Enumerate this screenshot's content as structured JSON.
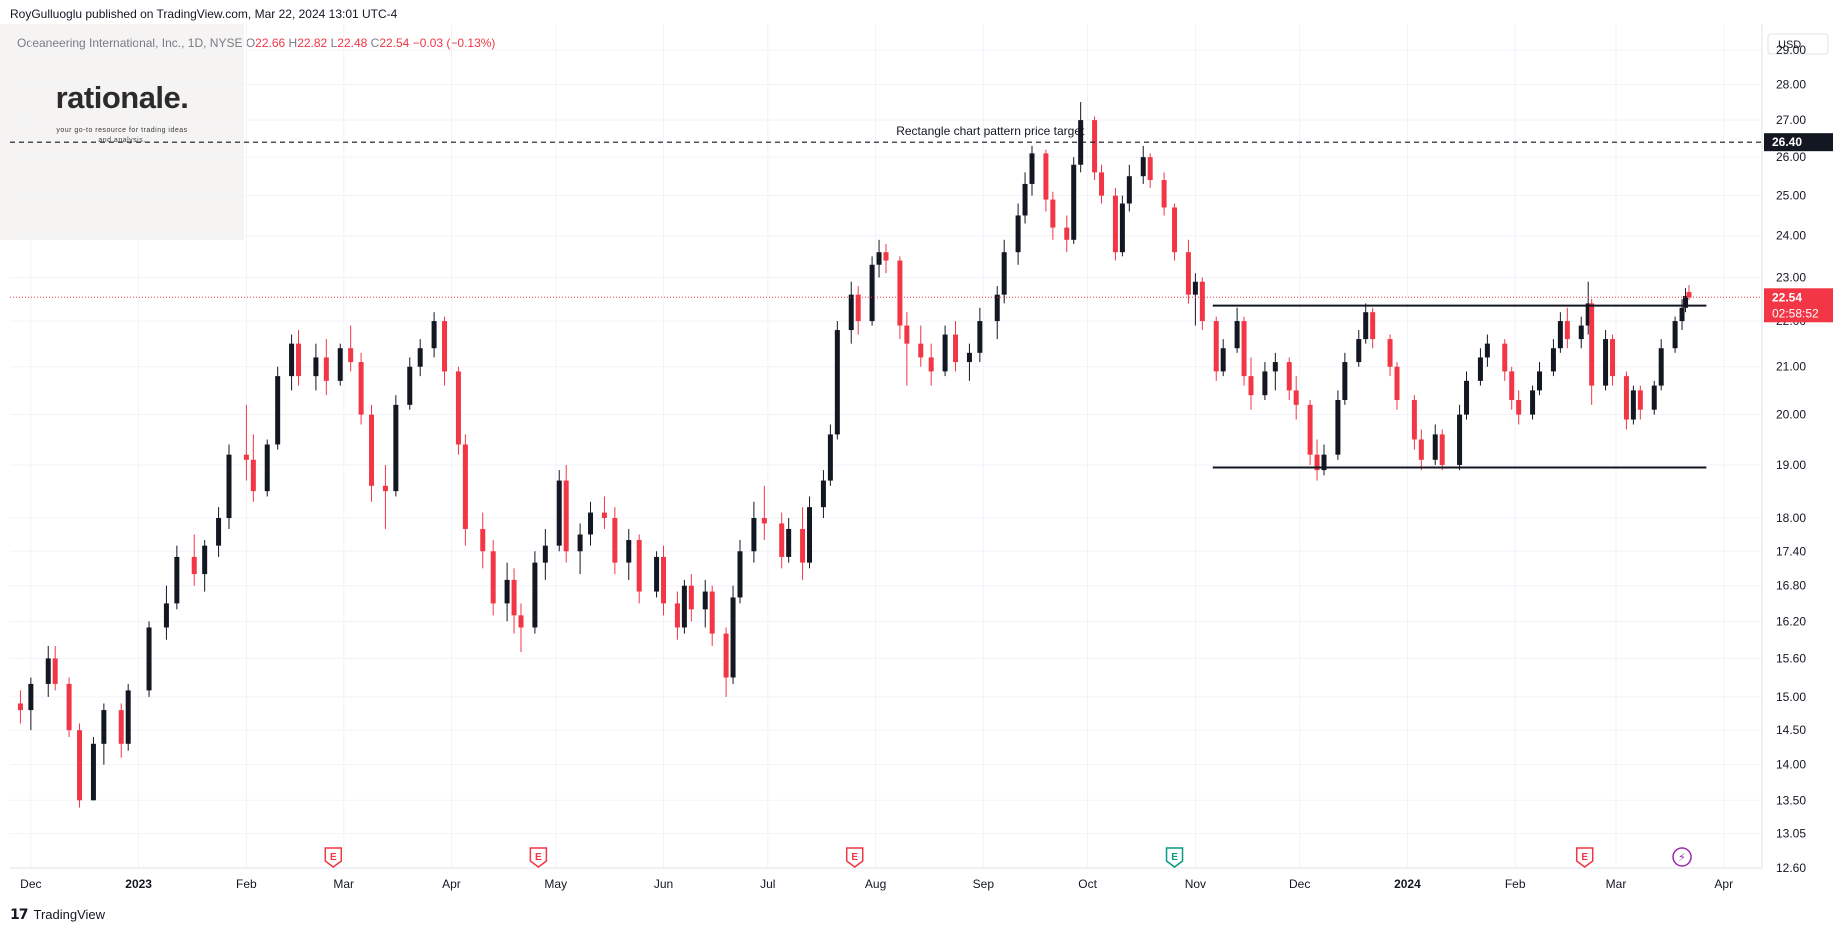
{
  "header": {
    "published": "RoyGulluoglu published on TradingView.com, Mar 22, 2024 13:01 UTC-4"
  },
  "legend": {
    "symbol": "Oceaneering International, Inc., 1D, NYSE",
    "open_label": "O",
    "open": "22.66",
    "high_label": "H",
    "high": "22.82",
    "low_label": "L",
    "low": "22.48",
    "close_label": "C",
    "close": "22.54",
    "change": "−0.03 (−0.13%)"
  },
  "watermark": {
    "brand": "rationale.",
    "tagline": "your go-to resource for trading ideas and analysis."
  },
  "axis": {
    "currency": "USD",
    "price_ticks": [
      "29.00",
      "28.00",
      "27.00",
      "26.00",
      "25.00",
      "24.00",
      "23.00",
      "22.00",
      "21.00",
      "20.00",
      "19.00",
      "18.00",
      "17.40",
      "16.80",
      "16.20",
      "15.60",
      "15.00",
      "14.50",
      "14.00",
      "13.50",
      "13.05",
      "12.60"
    ],
    "time_ticks": [
      "Dec",
      "2023",
      "Feb",
      "Mar",
      "Apr",
      "May",
      "Jun",
      "Jul",
      "Aug",
      "Sep",
      "Oct",
      "Nov",
      "Dec",
      "2024",
      "Feb",
      "Mar",
      "Apr"
    ]
  },
  "price_badge": {
    "price": "22.54",
    "countdown": "02:58:52"
  },
  "target_badge": "26.40",
  "annotation": "Rectangle chart pattern price target",
  "events": {
    "earnings_label": "E",
    "dividend_label": "⚡"
  },
  "footer": {
    "brand": "TradingView"
  },
  "colors": {
    "up": "#131722",
    "down": "#f23645",
    "grid": "#f0f3fa",
    "axis_text": "#131722",
    "last_price_line": "#f23645",
    "dividend": "#9c27b0",
    "earnings_up": "#089981"
  },
  "chart_data": {
    "type": "candlestick",
    "scale": "log",
    "ylim": [
      12.6,
      29.0
    ],
    "xlim": [
      "2022-11-25",
      "2024-04-12"
    ],
    "target_line": 26.4,
    "last_price": 22.54,
    "rectangle_top": 22.35,
    "rectangle_bottom": 18.95,
    "rectangle_range": [
      "2023-11-06",
      "2024-03-22"
    ],
    "candles": [
      [
        "2022-11-28",
        14.9,
        15.1,
        14.6,
        14.8
      ],
      [
        "2022-12-01",
        14.8,
        15.3,
        14.5,
        15.2
      ],
      [
        "2022-12-06",
        15.2,
        15.8,
        15.0,
        15.6
      ],
      [
        "2022-12-08",
        15.6,
        15.8,
        15.1,
        15.2
      ],
      [
        "2022-12-12",
        15.2,
        15.3,
        14.4,
        14.5
      ],
      [
        "2022-12-15",
        14.5,
        14.6,
        13.4,
        13.5
      ],
      [
        "2022-12-19",
        13.5,
        14.4,
        13.5,
        14.3
      ],
      [
        "2022-12-22",
        14.3,
        14.9,
        14.0,
        14.8
      ],
      [
        "2022-12-27",
        14.8,
        14.9,
        14.1,
        14.3
      ],
      [
        "2022-12-29",
        14.3,
        15.2,
        14.2,
        15.1
      ],
      [
        "2023-01-04",
        15.1,
        16.2,
        15.0,
        16.1
      ],
      [
        "2023-01-09",
        16.1,
        16.8,
        15.9,
        16.5
      ],
      [
        "2023-01-12",
        16.5,
        17.5,
        16.4,
        17.3
      ],
      [
        "2023-01-17",
        17.3,
        17.7,
        16.8,
        17.0
      ],
      [
        "2023-01-20",
        17.0,
        17.6,
        16.7,
        17.5
      ],
      [
        "2023-01-24",
        17.5,
        18.2,
        17.3,
        18.0
      ],
      [
        "2023-01-27",
        18.0,
        19.4,
        17.8,
        19.2
      ],
      [
        "2023-02-01",
        19.2,
        20.2,
        18.7,
        19.1
      ],
      [
        "2023-02-03",
        19.1,
        19.6,
        18.3,
        18.5
      ],
      [
        "2023-02-07",
        18.5,
        19.5,
        18.4,
        19.4
      ],
      [
        "2023-02-10",
        19.4,
        21.0,
        19.3,
        20.8
      ],
      [
        "2023-02-14",
        20.8,
        21.7,
        20.5,
        21.5
      ],
      [
        "2023-02-16",
        21.5,
        21.8,
        20.6,
        20.8
      ],
      [
        "2023-02-21",
        20.8,
        21.5,
        20.5,
        21.2
      ],
      [
        "2023-02-24",
        21.2,
        21.6,
        20.4,
        20.7
      ],
      [
        "2023-02-28",
        20.7,
        21.5,
        20.6,
        21.4
      ],
      [
        "2023-03-03",
        21.4,
        21.9,
        20.9,
        21.1
      ],
      [
        "2023-03-06",
        21.1,
        21.3,
        19.8,
        20.0
      ],
      [
        "2023-03-09",
        20.0,
        20.2,
        18.3,
        18.6
      ],
      [
        "2023-03-13",
        18.6,
        19.0,
        17.8,
        18.5
      ],
      [
        "2023-03-16",
        18.5,
        20.4,
        18.4,
        20.2
      ],
      [
        "2023-03-20",
        20.2,
        21.2,
        20.1,
        21.0
      ],
      [
        "2023-03-23",
        21.0,
        21.6,
        20.8,
        21.4
      ],
      [
        "2023-03-27",
        21.4,
        22.2,
        21.2,
        22.0
      ],
      [
        "2023-03-30",
        22.0,
        22.1,
        20.6,
        20.9
      ],
      [
        "2023-04-03",
        20.9,
        21.0,
        19.2,
        19.4
      ],
      [
        "2023-04-05",
        19.4,
        19.6,
        17.5,
        17.8
      ],
      [
        "2023-04-10",
        17.8,
        18.1,
        17.1,
        17.4
      ],
      [
        "2023-04-13",
        17.4,
        17.6,
        16.3,
        16.5
      ],
      [
        "2023-04-17",
        16.5,
        17.2,
        16.2,
        16.9
      ],
      [
        "2023-04-19",
        16.9,
        17.1,
        16.0,
        16.3
      ],
      [
        "2023-04-21",
        16.3,
        16.5,
        15.7,
        16.1
      ],
      [
        "2023-04-25",
        16.1,
        17.4,
        16.0,
        17.2
      ],
      [
        "2023-04-28",
        17.2,
        17.8,
        16.9,
        17.5
      ],
      [
        "2023-05-02",
        17.5,
        18.9,
        17.4,
        18.7
      ],
      [
        "2023-05-04",
        18.7,
        19.0,
        17.2,
        17.4
      ],
      [
        "2023-05-08",
        17.4,
        17.9,
        17.0,
        17.7
      ],
      [
        "2023-05-11",
        17.7,
        18.3,
        17.5,
        18.1
      ],
      [
        "2023-05-15",
        18.1,
        18.4,
        17.8,
        18.0
      ],
      [
        "2023-05-18",
        18.0,
        18.2,
        17.0,
        17.2
      ],
      [
        "2023-05-22",
        17.2,
        17.8,
        16.9,
        17.6
      ],
      [
        "2023-05-25",
        17.6,
        17.7,
        16.5,
        16.7
      ],
      [
        "2023-05-30",
        16.7,
        17.4,
        16.6,
        17.3
      ],
      [
        "2023-06-01",
        17.3,
        17.5,
        16.3,
        16.5
      ],
      [
        "2023-06-05",
        16.5,
        16.7,
        15.9,
        16.1
      ],
      [
        "2023-06-07",
        16.1,
        16.9,
        16.0,
        16.8
      ],
      [
        "2023-06-09",
        16.8,
        17.0,
        16.2,
        16.4
      ],
      [
        "2023-06-13",
        16.4,
        16.9,
        16.1,
        16.7
      ],
      [
        "2023-06-15",
        16.7,
        16.8,
        15.8,
        16.0
      ],
      [
        "2023-06-19",
        16.0,
        16.1,
        15.0,
        15.3
      ],
      [
        "2023-06-21",
        15.3,
        16.8,
        15.2,
        16.6
      ],
      [
        "2023-06-23",
        16.6,
        17.6,
        16.5,
        17.4
      ],
      [
        "2023-06-27",
        17.4,
        18.3,
        17.2,
        18.0
      ],
      [
        "2023-06-30",
        18.0,
        18.6,
        17.6,
        17.9
      ],
      [
        "2023-07-05",
        17.9,
        18.1,
        17.1,
        17.3
      ],
      [
        "2023-07-07",
        17.3,
        18.0,
        17.2,
        17.8
      ],
      [
        "2023-07-11",
        17.8,
        18.2,
        16.9,
        17.2
      ],
      [
        "2023-07-13",
        17.2,
        18.4,
        17.1,
        18.2
      ],
      [
        "2023-07-17",
        18.2,
        18.9,
        18.0,
        18.7
      ],
      [
        "2023-07-19",
        18.7,
        19.8,
        18.6,
        19.6
      ],
      [
        "2023-07-21",
        19.6,
        22.0,
        19.5,
        21.8
      ],
      [
        "2023-07-25",
        21.8,
        22.9,
        21.5,
        22.6
      ],
      [
        "2023-07-27",
        22.6,
        22.8,
        21.7,
        22.0
      ],
      [
        "2023-07-31",
        22.0,
        23.5,
        21.9,
        23.3
      ],
      [
        "2023-08-02",
        23.3,
        23.9,
        23.0,
        23.6
      ],
      [
        "2023-08-04",
        23.6,
        23.8,
        23.1,
        23.4
      ],
      [
        "2023-08-08",
        23.4,
        23.5,
        21.6,
        21.9
      ],
      [
        "2023-08-10",
        21.9,
        22.2,
        20.6,
        21.5
      ],
      [
        "2023-08-14",
        21.5,
        21.9,
        21.0,
        21.2
      ],
      [
        "2023-08-17",
        21.2,
        21.5,
        20.6,
        20.9
      ],
      [
        "2023-08-21",
        20.9,
        21.9,
        20.8,
        21.7
      ],
      [
        "2023-08-24",
        21.7,
        22.0,
        20.9,
        21.1
      ],
      [
        "2023-08-28",
        21.1,
        21.5,
        20.7,
        21.3
      ],
      [
        "2023-08-31",
        21.3,
        22.3,
        21.1,
        22.0
      ],
      [
        "2023-09-05",
        22.0,
        22.8,
        21.6,
        22.6
      ],
      [
        "2023-09-07",
        22.6,
        23.9,
        22.4,
        23.6
      ],
      [
        "2023-09-11",
        23.6,
        24.8,
        23.3,
        24.5
      ],
      [
        "2023-09-13",
        24.5,
        25.6,
        24.3,
        25.3
      ],
      [
        "2023-09-15",
        25.3,
        26.3,
        25.0,
        26.1
      ],
      [
        "2023-09-19",
        26.1,
        26.2,
        24.6,
        24.9
      ],
      [
        "2023-09-21",
        24.9,
        25.1,
        23.9,
        24.2
      ],
      [
        "2023-09-25",
        24.2,
        24.5,
        23.6,
        23.9
      ],
      [
        "2023-09-27",
        23.9,
        26.0,
        23.8,
        25.8
      ],
      [
        "2023-09-29",
        25.8,
        27.5,
        25.6,
        27.0
      ],
      [
        "2023-10-03",
        27.0,
        27.1,
        25.4,
        25.6
      ],
      [
        "2023-10-05",
        25.6,
        25.8,
        24.8,
        25.0
      ],
      [
        "2023-10-09",
        25.0,
        25.2,
        23.4,
        23.6
      ],
      [
        "2023-10-11",
        23.6,
        25.0,
        23.5,
        24.8
      ],
      [
        "2023-10-13",
        24.8,
        25.8,
        24.6,
        25.5
      ],
      [
        "2023-10-17",
        25.5,
        26.3,
        25.3,
        26.0
      ],
      [
        "2023-10-19",
        26.0,
        26.1,
        25.2,
        25.4
      ],
      [
        "2023-10-23",
        25.4,
        25.6,
        24.5,
        24.7
      ],
      [
        "2023-10-26",
        24.7,
        24.8,
        23.4,
        23.6
      ],
      [
        "2023-10-30",
        23.6,
        23.9,
        22.4,
        22.6
      ],
      [
        "2023-11-01",
        22.6,
        23.1,
        21.9,
        22.9
      ],
      [
        "2023-11-03",
        22.9,
        23.0,
        21.8,
        22.0
      ],
      [
        "2023-11-07",
        22.0,
        22.1,
        20.7,
        20.9
      ],
      [
        "2023-11-09",
        20.9,
        21.6,
        20.8,
        21.4
      ],
      [
        "2023-11-13",
        21.4,
        22.3,
        21.3,
        22.0
      ],
      [
        "2023-11-15",
        22.0,
        22.1,
        20.6,
        20.8
      ],
      [
        "2023-11-17",
        20.8,
        21.2,
        20.1,
        20.4
      ],
      [
        "2023-11-21",
        20.4,
        21.1,
        20.3,
        20.9
      ],
      [
        "2023-11-24",
        20.9,
        21.3,
        20.5,
        21.1
      ],
      [
        "2023-11-28",
        21.1,
        21.2,
        20.3,
        20.5
      ],
      [
        "2023-11-30",
        20.5,
        20.8,
        19.9,
        20.2
      ],
      [
        "2023-12-04",
        20.2,
        20.3,
        19.0,
        19.2
      ],
      [
        "2023-12-06",
        19.2,
        19.5,
        18.7,
        18.9
      ],
      [
        "2023-12-08",
        18.9,
        19.4,
        18.8,
        19.2
      ],
      [
        "2023-12-12",
        19.2,
        20.5,
        19.1,
        20.3
      ],
      [
        "2023-12-14",
        20.3,
        21.3,
        20.2,
        21.1
      ],
      [
        "2023-12-18",
        21.1,
        21.8,
        21.0,
        21.6
      ],
      [
        "2023-12-20",
        21.6,
        22.4,
        21.5,
        22.2
      ],
      [
        "2023-12-22",
        22.2,
        22.3,
        21.4,
        21.6
      ],
      [
        "2023-12-27",
        21.6,
        21.7,
        20.8,
        21.0
      ],
      [
        "2023-12-29",
        21.0,
        21.1,
        20.1,
        20.3
      ],
      [
        "2024-01-03",
        20.3,
        20.4,
        19.3,
        19.5
      ],
      [
        "2024-01-05",
        19.5,
        19.7,
        18.9,
        19.1
      ],
      [
        "2024-01-09",
        19.1,
        19.8,
        19.0,
        19.6
      ],
      [
        "2024-01-11",
        19.6,
        19.7,
        18.9,
        19.0
      ],
      [
        "2024-01-16",
        19.0,
        20.2,
        18.9,
        20.0
      ],
      [
        "2024-01-18",
        20.0,
        20.9,
        19.9,
        20.7
      ],
      [
        "2024-01-22",
        20.7,
        21.4,
        20.6,
        21.2
      ],
      [
        "2024-01-24",
        21.2,
        21.7,
        21.0,
        21.5
      ],
      [
        "2024-01-29",
        21.5,
        21.6,
        20.7,
        20.9
      ],
      [
        "2024-01-31",
        20.9,
        21.0,
        20.1,
        20.3
      ],
      [
        "2024-02-02",
        20.3,
        20.5,
        19.8,
        20.0
      ],
      [
        "2024-02-06",
        20.0,
        20.6,
        19.9,
        20.5
      ],
      [
        "2024-02-08",
        20.5,
        21.1,
        20.4,
        20.9
      ],
      [
        "2024-02-12",
        20.9,
        21.6,
        20.8,
        21.4
      ],
      [
        "2024-02-14",
        21.4,
        22.2,
        21.3,
        22.0
      ],
      [
        "2024-02-16",
        22.0,
        22.3,
        21.4,
        21.6
      ],
      [
        "2024-02-20",
        21.6,
        22.1,
        21.4,
        21.9
      ],
      [
        "2024-02-22",
        21.9,
        22.9,
        21.7,
        22.4
      ],
      [
        "2024-02-23",
        22.4,
        22.5,
        20.2,
        20.6
      ],
      [
        "2024-02-27",
        20.6,
        21.8,
        20.5,
        21.6
      ],
      [
        "2024-02-29",
        21.6,
        21.7,
        20.6,
        20.8
      ],
      [
        "2024-03-04",
        20.8,
        20.9,
        19.7,
        19.9
      ],
      [
        "2024-03-06",
        19.9,
        20.6,
        19.8,
        20.5
      ],
      [
        "2024-03-08",
        20.5,
        20.6,
        19.9,
        20.1
      ],
      [
        "2024-03-12",
        20.1,
        20.7,
        20.0,
        20.6
      ],
      [
        "2024-03-14",
        20.6,
        21.6,
        20.5,
        21.4
      ],
      [
        "2024-03-18",
        21.4,
        22.1,
        21.3,
        22.0
      ],
      [
        "2024-03-20",
        22.0,
        22.5,
        21.8,
        22.3
      ],
      [
        "2024-03-21",
        22.3,
        22.75,
        22.2,
        22.57
      ],
      [
        "2024-03-22",
        22.66,
        22.82,
        22.48,
        22.54
      ]
    ],
    "earnings_events": [
      "2023-02-26",
      "2023-04-26",
      "2023-07-26",
      "2023-10-26",
      "2024-02-21"
    ],
    "dividend_events": [
      "2024-03-20"
    ]
  }
}
